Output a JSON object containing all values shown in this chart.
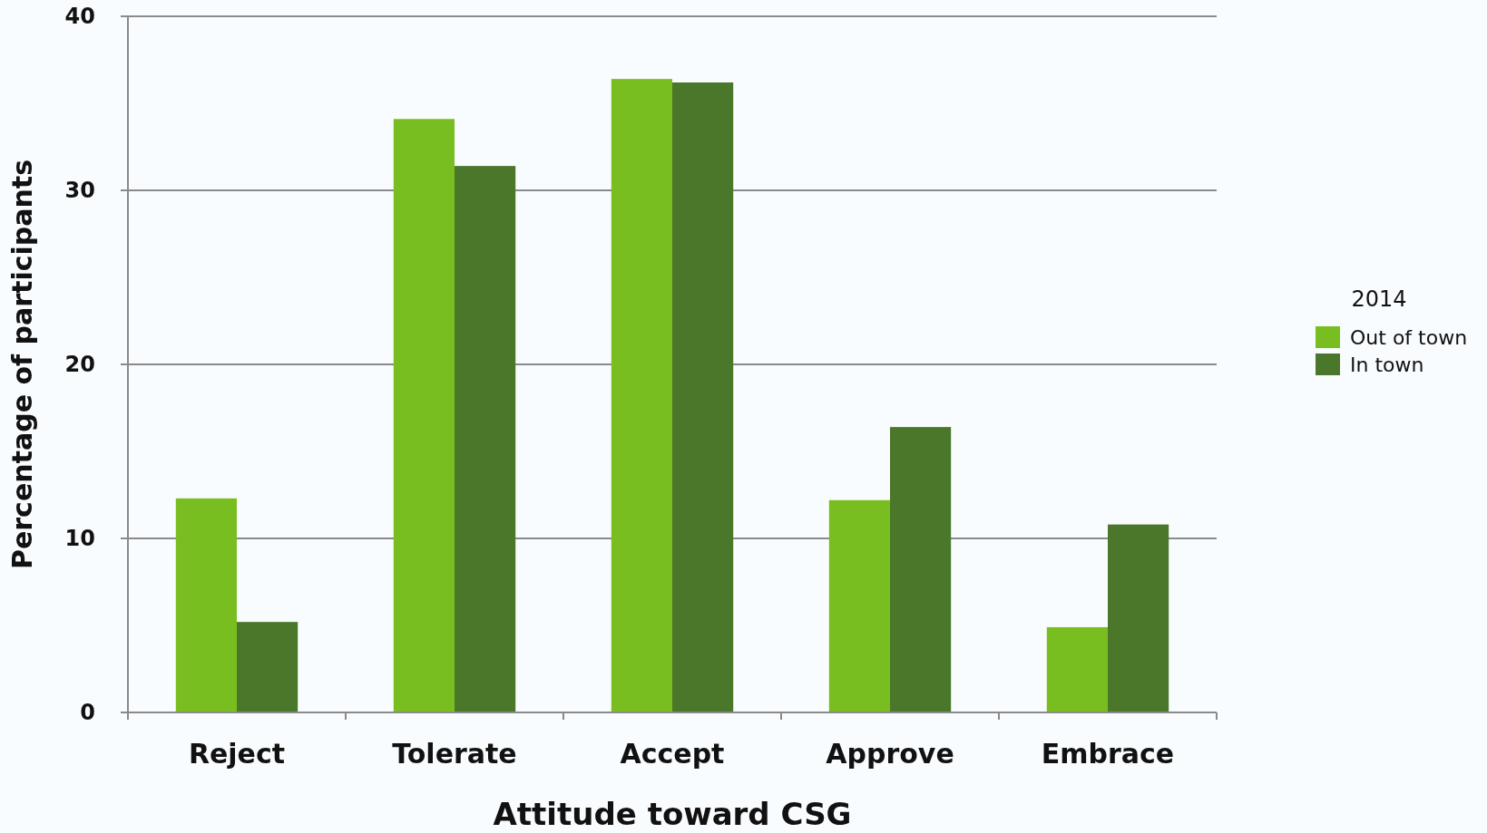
{
  "chart_data": {
    "type": "bar",
    "xlabel": "Attitude toward CSG",
    "ylabel": "Percentage of participants",
    "legend_title": "2014",
    "categories": [
      "Reject",
      "Tolerate",
      "Accept",
      "Approve",
      "Embrace"
    ],
    "series": [
      {
        "name": "Out of town",
        "color": "#79be21",
        "values": [
          12.3,
          34.1,
          36.4,
          12.2,
          4.9
        ]
      },
      {
        "name": "In town",
        "color": "#4b772a",
        "values": [
          5.2,
          31.4,
          36.2,
          16.4,
          10.8
        ]
      }
    ],
    "ylim": [
      0,
      40
    ],
    "yticks": [
      0,
      10,
      20,
      30,
      40
    ],
    "grid": "y",
    "legend": "right"
  }
}
